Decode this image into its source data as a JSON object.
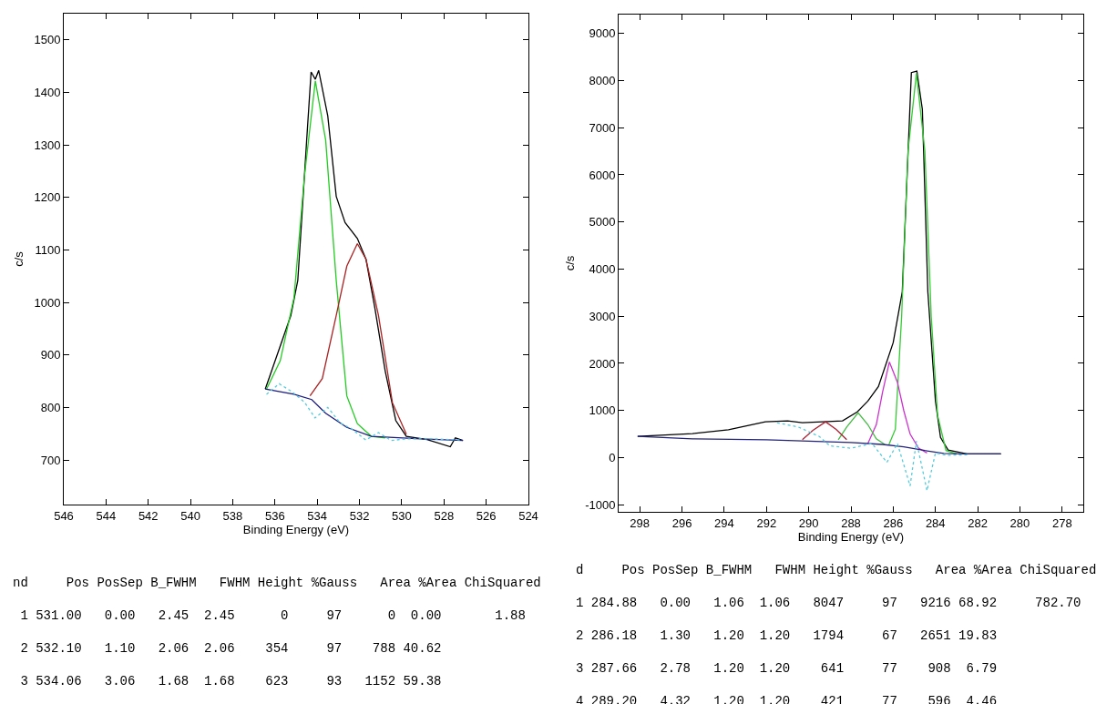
{
  "chart_data": [
    {
      "type": "line",
      "xlabel": "Binding Energy (eV)",
      "ylabel": "c/s",
      "xlim": [
        546,
        524
      ],
      "ylim": [
        615,
        1550
      ],
      "xticks": [
        546,
        544,
        542,
        540,
        538,
        536,
        534,
        532,
        530,
        528,
        526,
        524
      ],
      "yticks": [
        700,
        800,
        900,
        1000,
        1100,
        1200,
        1300,
        1400,
        1500
      ],
      "marker": "none",
      "series": [
        {
          "color": "#000000",
          "line_style": "solid",
          "x": [
            536.46,
            535.25,
            534.92,
            534.76,
            534.5,
            534.29,
            534.09,
            533.93,
            533.5,
            533.1,
            532.68,
            532.1,
            531.69,
            531.27,
            530.78,
            530.28,
            529.78,
            528.8,
            527.7,
            527.46,
            527.1
          ],
          "values": [
            835,
            975,
            1042,
            1142,
            1309,
            1439,
            1425,
            1442,
            1355,
            1202,
            1152,
            1122,
            1082,
            989,
            869,
            775,
            745,
            739,
            725,
            742,
            737
          ]
        },
        {
          "color": "#22cc22",
          "line_style": "solid",
          "x": [
            536.4,
            535.75,
            535.1,
            534.6,
            534.09,
            533.6,
            533.1,
            532.6,
            532.1,
            531.44,
            530.78
          ],
          "values": [
            835,
            889,
            1009,
            1242,
            1422,
            1309,
            1042,
            822,
            769,
            745,
            742
          ]
        },
        {
          "color": "#aa2222",
          "line_style": "solid",
          "x": [
            534.34,
            533.76,
            533.1,
            532.6,
            532.1,
            531.69,
            531.1,
            530.44,
            529.78
          ],
          "values": [
            822,
            855,
            975,
            1069,
            1112,
            1082,
            975,
            809,
            749
          ]
        },
        {
          "color": "#1a1a80",
          "line_style": "solid",
          "x": [
            536.46,
            535.1,
            534.26,
            533.6,
            532.6,
            531.44,
            529.1,
            527.1
          ],
          "values": [
            835,
            825,
            815,
            789,
            762,
            745,
            740,
            737
          ]
        },
        {
          "color": "#55ccdd",
          "line_style": "dotted",
          "x": [
            536.4,
            535.8,
            535.2,
            534.6,
            534.1,
            533.5,
            532.9,
            532.4,
            531.7,
            531.1,
            530.5,
            529.8,
            528.5,
            527.2
          ],
          "values": [
            825,
            845,
            830,
            810,
            780,
            800,
            770,
            760,
            738,
            752,
            737,
            740,
            740,
            738
          ]
        }
      ],
      "annotations": [
        "nd     Pos PosSep B_FWHM   FWHM Height %Gauss   Area %Area ChiSquared",
        " 1 531.00   0.00   2.45  2.45      0     97      0  0.00       1.88",
        " 2 532.10   1.10   2.06  2.06    354     97    788 40.62",
        " 3 534.06   3.06   1.68  1.68    623     93   1152 59.38"
      ]
    },
    {
      "type": "line",
      "xlabel": "Binding Energy (eV)",
      "ylabel": "c/s",
      "xlim": [
        299,
        277
      ],
      "ylim": [
        -1150,
        9400
      ],
      "xticks": [
        298,
        296,
        294,
        292,
        290,
        288,
        286,
        284,
        282,
        280,
        278
      ],
      "yticks": [
        -1000,
        0,
        1000,
        2000,
        3000,
        4000,
        5000,
        6000,
        7000,
        8000,
        9000
      ],
      "marker": "none",
      "series": [
        {
          "color": "#000000",
          "line_style": "solid",
          "x": [
            298.1,
            295.5,
            293.8,
            292.05,
            291.0,
            290.3,
            288.4,
            287.7,
            287.2,
            286.7,
            286.0,
            285.57,
            285.14,
            284.88,
            284.62,
            284.36,
            284.0,
            283.76,
            283.4,
            282.5,
            280.9
          ],
          "values": [
            450,
            510,
            590,
            760,
            780,
            740,
            780,
            970,
            1200,
            1510,
            2440,
            3520,
            8170,
            8200,
            7390,
            3520,
            1200,
            430,
            160,
            80,
            80
          ]
        },
        {
          "color": "#33cc33",
          "line_style": "solid",
          "x": [
            286.2,
            285.9,
            285.6,
            285.3,
            284.9,
            284.5,
            284.2,
            283.9,
            283.5,
            283.0
          ],
          "values": [
            280,
            600,
            3000,
            6500,
            8150,
            6500,
            3000,
            900,
            150,
            80
          ]
        },
        {
          "color": "#cc33cc",
          "line_style": "solid",
          "x": [
            287.2,
            286.8,
            286.5,
            286.18,
            285.8,
            285.5,
            285.2,
            284.8,
            284.4
          ],
          "values": [
            300,
            700,
            1400,
            2030,
            1600,
            1000,
            500,
            200,
            100
          ]
        },
        {
          "color": "#44bb44",
          "line_style": "solid",
          "x": [
            288.6,
            288.2,
            287.66,
            287.2,
            286.8,
            286.4
          ],
          "values": [
            380,
            650,
            950,
            700,
            400,
            280
          ]
        },
        {
          "color": "#aa2233",
          "line_style": "solid",
          "x": [
            290.3,
            289.8,
            289.2,
            288.7,
            288.2
          ],
          "values": [
            380,
            580,
            760,
            600,
            380
          ]
        },
        {
          "color": "#22227a",
          "line_style": "solid",
          "x": [
            298.1,
            295.5,
            292.0,
            290.0,
            288.0,
            286.5,
            285.5,
            284.5,
            283.6,
            282.5,
            280.9
          ],
          "values": [
            450,
            400,
            380,
            350,
            320,
            280,
            230,
            150,
            90,
            80,
            80
          ]
        },
        {
          "color": "#55ccdd",
          "line_style": "dotted",
          "x": [
            291.5,
            290.5,
            289.5,
            289.0,
            288.0,
            287.0,
            286.3,
            285.8,
            285.2,
            284.9,
            284.4,
            284.0,
            283.5,
            282.5
          ],
          "values": [
            740,
            650,
            450,
            250,
            200,
            300,
            -100,
            300,
            -600,
            350,
            -700,
            100,
            50,
            60
          ]
        }
      ],
      "annotations": [
        "d     Pos PosSep B_FWHM   FWHM Height %Gauss   Area %Area ChiSquared",
        "1 284.88   0.00   1.06  1.06   8047     97   9216 68.92     782.70",
        "2 286.18   1.30   1.20  1.20   1794     67   2651 19.83",
        "3 287.66   2.78   1.20  1.20    641     77    908  6.79",
        "4 289.20   4.32   1.20  1.20    421     77    596  4.46"
      ]
    }
  ]
}
